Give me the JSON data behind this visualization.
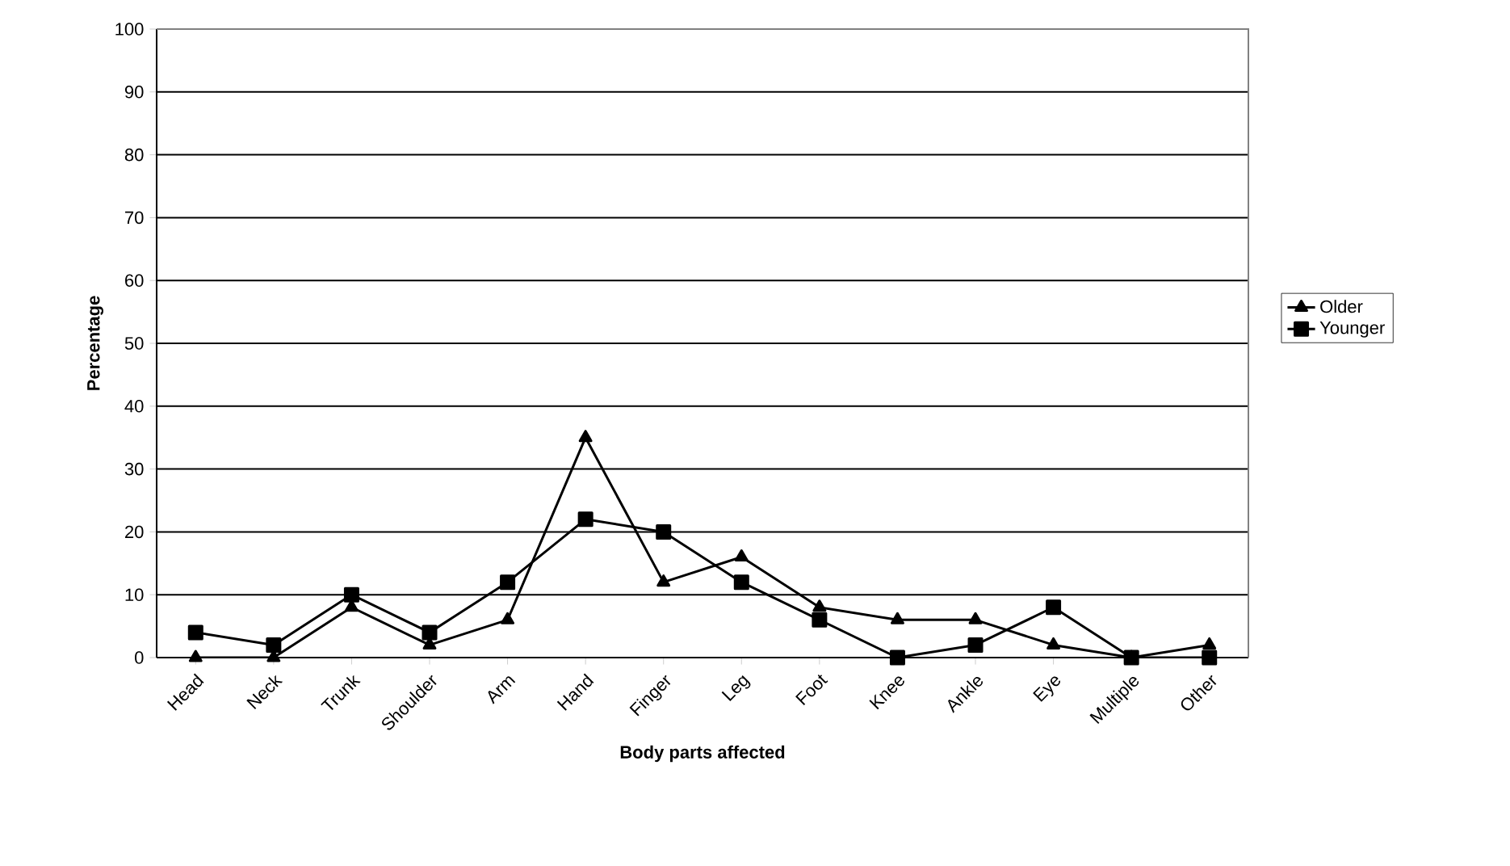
{
  "chart_data": {
    "type": "line",
    "xlabel": "Body parts affected",
    "ylabel": "Percentage",
    "categories": [
      "Head",
      "Neck",
      "Trunk",
      "Shoulder",
      "Arm",
      "Hand",
      "Finger",
      "Leg",
      "Foot",
      "Knee",
      "Ankle",
      "Eye",
      "Multiple",
      "Other"
    ],
    "series": [
      {
        "name": "Older",
        "color": "#000000",
        "marker": "triangle",
        "values": [
          0,
          0,
          8,
          2,
          6,
          35,
          12,
          16,
          8,
          6,
          6,
          2,
          0,
          2
        ]
      },
      {
        "name": "Younger",
        "color": "#000000",
        "marker": "square",
        "values": [
          4,
          2,
          10,
          4,
          12,
          22,
          20,
          12,
          6,
          0,
          2,
          8,
          0,
          0
        ]
      }
    ],
    "ylim": [
      0,
      100
    ],
    "yticks": [
      0,
      10,
      20,
      30,
      40,
      50,
      60,
      70,
      80,
      90,
      100
    ],
    "grid": "y",
    "legend": "right",
    "line_style": "solid"
  }
}
